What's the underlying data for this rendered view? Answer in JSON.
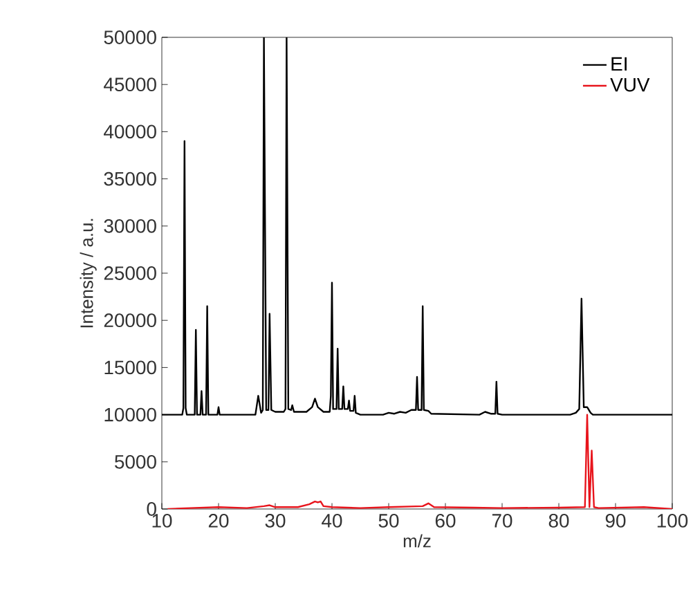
{
  "chart_data": {
    "type": "line",
    "xlabel": "m/z",
    "ylabel": "Intensity / a.u.",
    "xlim": [
      10,
      100
    ],
    "ylim": [
      0,
      50000
    ],
    "xticks": [
      10,
      20,
      30,
      40,
      50,
      60,
      70,
      80,
      90,
      100
    ],
    "yticks": [
      0,
      5000,
      10000,
      15000,
      20000,
      25000,
      30000,
      35000,
      40000,
      45000,
      50000
    ],
    "legend": "top right",
    "marker": "none",
    "line_style": "solid",
    "grid": false,
    "series": [
      {
        "name": "EI",
        "color": "#000000",
        "x": [
          10,
          13.6,
          13.8,
          14,
          14.2,
          14.4,
          15.8,
          16,
          16.2,
          16.8,
          17,
          17.2,
          17.8,
          18,
          18.2,
          19.8,
          20,
          20.2,
          26.5,
          27,
          27.5,
          27.8,
          28,
          28.4,
          28.8,
          29,
          29.3,
          30,
          31.5,
          31.8,
          32,
          32.3,
          32.8,
          33,
          33.3,
          35.5,
          36.5,
          37,
          37.5,
          38.5,
          39.6,
          39.8,
          40,
          40.2,
          40.8,
          41,
          41.2,
          41.8,
          42,
          42.2,
          42.8,
          43,
          43.2,
          43.8,
          44,
          44.2,
          45,
          49,
          50,
          51,
          52,
          53,
          54,
          54.8,
          55,
          55.2,
          55.8,
          56,
          56.2,
          57,
          57.5,
          66,
          67,
          68,
          68.8,
          69,
          69.2,
          70,
          82,
          83,
          83.6,
          84,
          84.4,
          85,
          85.6,
          86,
          100
        ],
        "values": [
          10000,
          10000,
          10700,
          39000,
          10700,
          10000,
          10000,
          19000,
          10000,
          10000,
          12500,
          10000,
          10000,
          21500,
          10000,
          10000,
          10800,
          10000,
          10000,
          12000,
          10200,
          10500,
          50000,
          10500,
          10500,
          20700,
          10500,
          10300,
          10300,
          10600,
          50000,
          10600,
          10500,
          11000,
          10300,
          10300,
          10800,
          11700,
          10800,
          10300,
          10300,
          12000,
          24000,
          10600,
          10600,
          17000,
          10600,
          10600,
          13000,
          10600,
          10600,
          11500,
          10400,
          10400,
          12000,
          10200,
          10000,
          10000,
          10200,
          10100,
          10300,
          10200,
          10500,
          10500,
          14000,
          10500,
          10500,
          21500,
          10500,
          10400,
          10100,
          10000,
          10300,
          10100,
          10100,
          13500,
          10100,
          10000,
          10000,
          10200,
          10600,
          22300,
          10800,
          10800,
          10200,
          10000,
          10000
        ]
      },
      {
        "name": "VUV",
        "color": "#e8141c",
        "x": [
          11,
          15,
          20,
          25,
          28,
          29,
          30,
          34,
          36,
          37,
          37.5,
          38,
          38.5,
          40,
          45,
          50,
          56,
          57,
          58,
          65,
          70,
          80,
          84.6,
          85,
          85.4,
          85.8,
          86.2,
          87,
          95,
          100
        ],
        "values": [
          0,
          100,
          200,
          100,
          300,
          400,
          200,
          200,
          500,
          800,
          700,
          800,
          300,
          200,
          100,
          200,
          300,
          600,
          200,
          150,
          100,
          150,
          200,
          10000,
          200,
          6200,
          200,
          100,
          200,
          0
        ]
      }
    ]
  }
}
